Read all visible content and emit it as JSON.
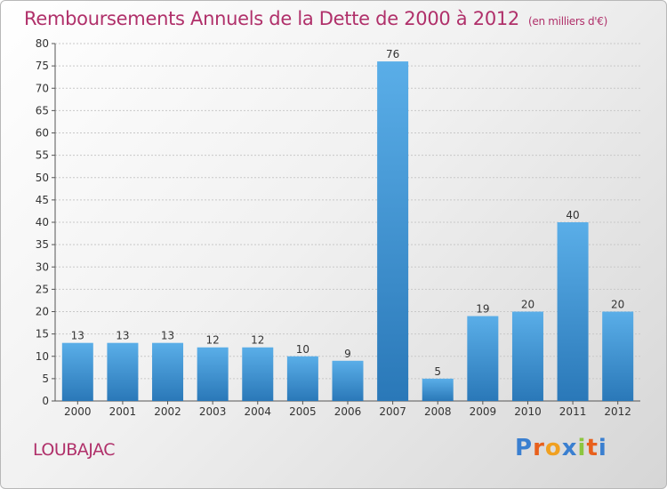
{
  "header": {
    "title": "Remboursements Annuels de la Dette de 2000 à 2012",
    "unit": "(en milliers d'€)"
  },
  "footer": {
    "commune": "LOUBAJAC",
    "brand_letters": [
      "P",
      "r",
      "o",
      "x",
      "i",
      "t",
      "i"
    ],
    "brand_colors": [
      "#3a7fd0",
      "#e8601c",
      "#f0a020",
      "#3a7fd0",
      "#8cc63f",
      "#e8601c",
      "#3a7fd0"
    ]
  },
  "colors": {
    "title": "#b0306a",
    "bar_top": "#5aaee8",
    "bar_bottom": "#2a78b8"
  },
  "chart_data": {
    "type": "bar",
    "title": "Remboursements Annuels de la Dette de 2000 à 2012",
    "subtitle": "(en milliers d'€)",
    "categories": [
      "2000",
      "2001",
      "2002",
      "2003",
      "2004",
      "2005",
      "2006",
      "2007",
      "2008",
      "2009",
      "2010",
      "2011",
      "2012"
    ],
    "values": [
      13,
      13,
      13,
      12,
      12,
      10,
      9,
      76,
      5,
      19,
      20,
      40,
      20
    ],
    "ylim": [
      0,
      80
    ],
    "yticks": [
      0,
      5,
      10,
      15,
      20,
      25,
      30,
      35,
      40,
      45,
      50,
      55,
      60,
      65,
      70,
      75,
      80
    ],
    "grid": true,
    "xlabel": "",
    "ylabel": ""
  }
}
